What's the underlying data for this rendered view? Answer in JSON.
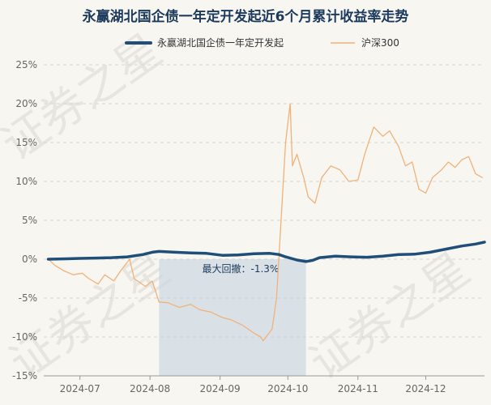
{
  "chart_data": {
    "type": "line",
    "title": "永赢湖北国企债一年定开发起近6个月累计收益率走势",
    "watermark": "证券之星",
    "ylim": [
      -15,
      25
    ],
    "y_ticks": [
      -15,
      -10,
      -5,
      0,
      5,
      10,
      15,
      20,
      25
    ],
    "y_tick_labels": [
      "-15%",
      "-10%",
      "-5%",
      "0%",
      "5%",
      "10%",
      "15%",
      "20%",
      "25%"
    ],
    "x_range": [
      "2024-06-15",
      "2024-12-27"
    ],
    "x_ticks": [
      {
        "date": "2024-07-01",
        "label": "2024-07"
      },
      {
        "date": "2024-08-01",
        "label": "2024-08"
      },
      {
        "date": "2024-09-01",
        "label": "2024-09"
      },
      {
        "date": "2024-10-01",
        "label": "2024-10"
      },
      {
        "date": "2024-11-01",
        "label": "2024-11"
      },
      {
        "date": "2024-12-01",
        "label": "2024-12"
      }
    ],
    "grid": true,
    "legend_position": "top",
    "max_drawdown": {
      "label": "最大回撤：-1.3%",
      "start": "2024-08-05",
      "end": "2024-10-09"
    },
    "series": [
      {
        "name": "永赢湖北国企债一年定开发起",
        "color": "#1f4e79",
        "points": [
          [
            "2024-06-17",
            0.0
          ],
          [
            "2024-06-25",
            0.05
          ],
          [
            "2024-07-01",
            0.1
          ],
          [
            "2024-07-08",
            0.15
          ],
          [
            "2024-07-15",
            0.2
          ],
          [
            "2024-07-22",
            0.3
          ],
          [
            "2024-07-29",
            0.6
          ],
          [
            "2024-08-02",
            0.9
          ],
          [
            "2024-08-05",
            1.0
          ],
          [
            "2024-08-12",
            0.9
          ],
          [
            "2024-08-19",
            0.8
          ],
          [
            "2024-08-26",
            0.75
          ],
          [
            "2024-09-02",
            0.5
          ],
          [
            "2024-09-09",
            0.55
          ],
          [
            "2024-09-16",
            0.7
          ],
          [
            "2024-09-23",
            0.75
          ],
          [
            "2024-09-27",
            0.6
          ],
          [
            "2024-09-30",
            0.3
          ],
          [
            "2024-10-05",
            -0.1
          ],
          [
            "2024-10-09",
            -0.3
          ],
          [
            "2024-10-12",
            -0.15
          ],
          [
            "2024-10-15",
            0.2
          ],
          [
            "2024-10-22",
            0.4
          ],
          [
            "2024-10-29",
            0.3
          ],
          [
            "2024-11-05",
            0.25
          ],
          [
            "2024-11-12",
            0.4
          ],
          [
            "2024-11-19",
            0.6
          ],
          [
            "2024-11-26",
            0.65
          ],
          [
            "2024-12-03",
            0.9
          ],
          [
            "2024-12-10",
            1.3
          ],
          [
            "2024-12-17",
            1.7
          ],
          [
            "2024-12-23",
            1.95
          ],
          [
            "2024-12-27",
            2.2
          ]
        ]
      },
      {
        "name": "沪深300",
        "color": "#f0b27a",
        "points": [
          [
            "2024-06-17",
            0.0
          ],
          [
            "2024-06-20",
            -0.8
          ],
          [
            "2024-06-24",
            -1.5
          ],
          [
            "2024-06-28",
            -2.0
          ],
          [
            "2024-07-02",
            -1.8
          ],
          [
            "2024-07-05",
            -2.5
          ],
          [
            "2024-07-09",
            -3.2
          ],
          [
            "2024-07-12",
            -2.0
          ],
          [
            "2024-07-16",
            -2.8
          ],
          [
            "2024-07-19",
            -1.5
          ],
          [
            "2024-07-23",
            0.0
          ],
          [
            "2024-07-25",
            -2.5
          ],
          [
            "2024-07-30",
            -3.5
          ],
          [
            "2024-08-02",
            -2.8
          ],
          [
            "2024-08-05",
            -5.5
          ],
          [
            "2024-08-09",
            -5.6
          ],
          [
            "2024-08-14",
            -6.2
          ],
          [
            "2024-08-19",
            -5.8
          ],
          [
            "2024-08-23",
            -6.5
          ],
          [
            "2024-08-28",
            -6.8
          ],
          [
            "2024-09-02",
            -7.5
          ],
          [
            "2024-09-06",
            -7.8
          ],
          [
            "2024-09-11",
            -8.5
          ],
          [
            "2024-09-16",
            -9.5
          ],
          [
            "2024-09-19",
            -10.0
          ],
          [
            "2024-09-20",
            -10.5
          ],
          [
            "2024-09-24",
            -9.0
          ],
          [
            "2024-09-26",
            -5.0
          ],
          [
            "2024-09-27",
            0.0
          ],
          [
            "2024-09-30",
            15.0
          ],
          [
            "2024-10-02",
            20.0
          ],
          [
            "2024-10-03",
            12.0
          ],
          [
            "2024-10-05",
            13.5
          ],
          [
            "2024-10-08",
            10.5
          ],
          [
            "2024-10-10",
            8.0
          ],
          [
            "2024-10-13",
            7.2
          ],
          [
            "2024-10-16",
            10.5
          ],
          [
            "2024-10-20",
            12.0
          ],
          [
            "2024-10-24",
            11.5
          ],
          [
            "2024-10-28",
            10.0
          ],
          [
            "2024-11-01",
            10.2
          ],
          [
            "2024-11-04",
            13.5
          ],
          [
            "2024-11-08",
            17.0
          ],
          [
            "2024-11-12",
            15.8
          ],
          [
            "2024-11-15",
            16.5
          ],
          [
            "2024-11-19",
            14.5
          ],
          [
            "2024-11-22",
            12.0
          ],
          [
            "2024-11-25",
            12.5
          ],
          [
            "2024-11-28",
            9.0
          ],
          [
            "2024-12-01",
            8.5
          ],
          [
            "2024-12-04",
            10.5
          ],
          [
            "2024-12-08",
            11.5
          ],
          [
            "2024-12-11",
            12.5
          ],
          [
            "2024-12-14",
            11.8
          ],
          [
            "2024-12-17",
            12.8
          ],
          [
            "2024-12-20",
            13.2
          ],
          [
            "2024-12-23",
            11.0
          ],
          [
            "2024-12-26",
            10.5
          ]
        ]
      }
    ]
  }
}
